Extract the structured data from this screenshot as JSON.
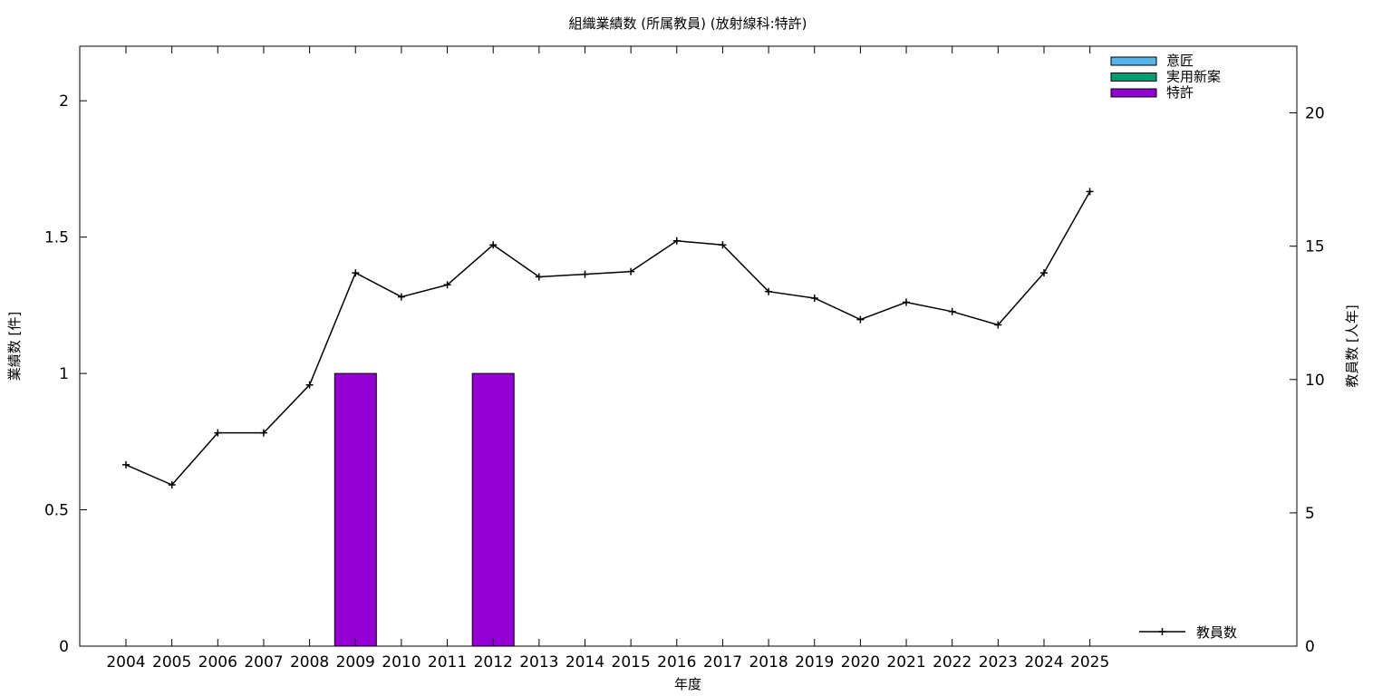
{
  "chart_data": {
    "type": "bar+line",
    "title": "組織業績数 (所属教員) (放射線科:特許)",
    "xlabel": "年度",
    "ylabel_left": "業績数 [件]",
    "ylabel_right": "教員数 [人年]",
    "categories": [
      "2004",
      "2005",
      "2006",
      "2007",
      "2008",
      "2009",
      "2010",
      "2011",
      "2012",
      "2013",
      "2014",
      "2015",
      "2016",
      "2017",
      "2018",
      "2019",
      "2020",
      "2021",
      "2022",
      "2023",
      "2024",
      "2025"
    ],
    "ylim_left": [
      0,
      2.2
    ],
    "yticks_left": [
      0,
      0.5,
      1,
      1.5,
      2
    ],
    "ytick_labels_left": [
      "0",
      "0.5",
      "1",
      "1.5",
      "2"
    ],
    "ylim_right": [
      0,
      22.5
    ],
    "yticks_right": [
      0,
      5,
      10,
      15,
      20
    ],
    "ytick_labels_right": [
      "0",
      "5",
      "10",
      "15",
      "20"
    ],
    "bar_series": [
      {
        "name": "意匠",
        "color": "#56b4e9",
        "values": [
          0,
          0,
          0,
          0,
          0,
          0,
          0,
          0,
          0,
          0,
          0,
          0,
          0,
          0,
          0,
          0,
          0,
          0,
          0,
          0,
          0,
          0
        ]
      },
      {
        "name": "実用新案",
        "color": "#009e73",
        "values": [
          0,
          0,
          0,
          0,
          0,
          0,
          0,
          0,
          0,
          0,
          0,
          0,
          0,
          0,
          0,
          0,
          0,
          0,
          0,
          0,
          0,
          0
        ]
      },
      {
        "name": "特許",
        "color": "#9400d3",
        "values": [
          0,
          0,
          0,
          0,
          0,
          1,
          0,
          0,
          1,
          0,
          0,
          0,
          0,
          0,
          0,
          0,
          0,
          0,
          0,
          0,
          0,
          0
        ]
      }
    ],
    "line_series": {
      "name": "教員数",
      "color": "#000000",
      "axis": "right",
      "values": [
        6.8,
        6.05,
        8.0,
        8.0,
        9.8,
        14.0,
        13.1,
        13.55,
        15.05,
        13.85,
        13.95,
        14.05,
        15.2,
        15.05,
        13.3,
        13.05,
        12.25,
        12.9,
        12.55,
        12.05,
        14.0,
        17.05
      ]
    },
    "legend_position": "top-right",
    "line_legend_position": "bottom-right",
    "grid": false
  }
}
